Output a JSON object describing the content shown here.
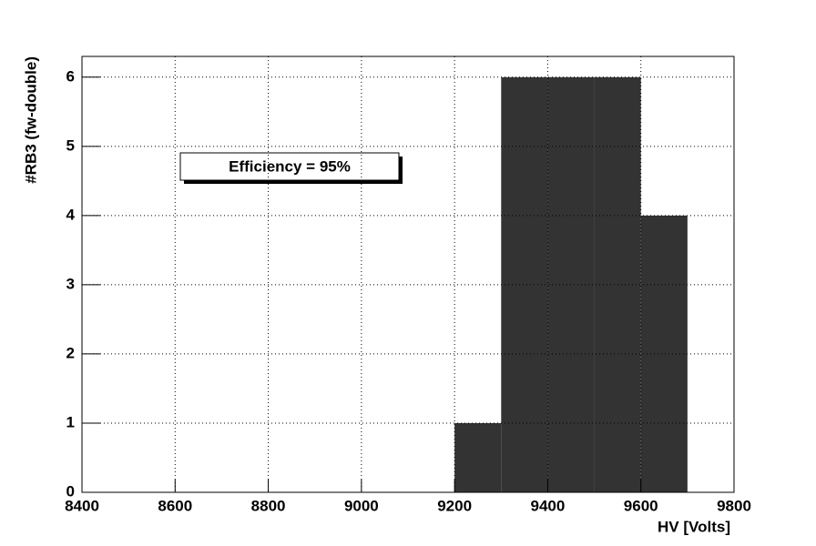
{
  "chart_data": {
    "type": "histogram",
    "bins": [
      9200,
      9300,
      9400,
      9500,
      9600,
      9700
    ],
    "values": [
      1,
      6,
      6,
      6,
      4
    ],
    "color": "#333333",
    "xlim": [
      8400,
      9800
    ],
    "xticks": [
      8400,
      8600,
      8800,
      9000,
      9200,
      9400,
      9600,
      9800
    ],
    "ylim": [
      0,
      6.3
    ],
    "yticks": [
      0,
      1,
      2,
      3,
      4,
      5,
      6
    ],
    "grid": true,
    "xlabel": "HV [Volts]",
    "ylabel": "#RB3 (fw-double)",
    "annotation": "Efficiency = 95%"
  }
}
